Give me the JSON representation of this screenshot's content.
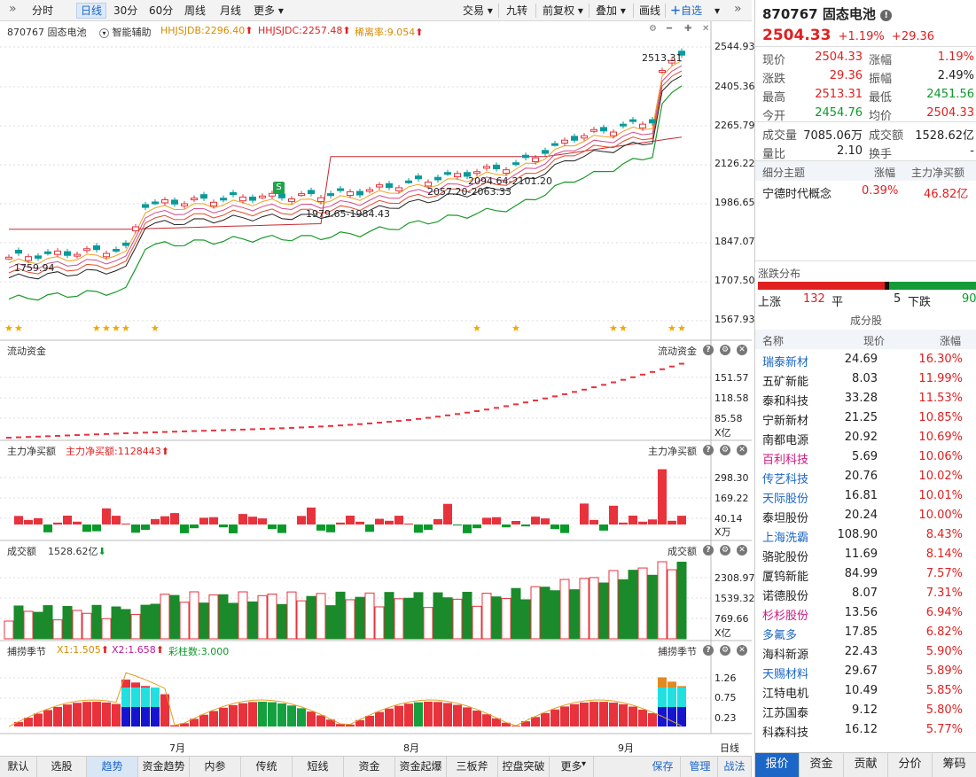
{
  "toolbar": {
    "left_items": [
      "分时",
      "日线",
      "30分",
      "60分",
      "周线",
      "月线",
      "更多"
    ],
    "active": "日线",
    "right_items": [
      "交易",
      "九转",
      "前复权",
      "叠加",
      "画线"
    ],
    "add_watch": "自选"
  },
  "main_chart": {
    "code_name": "870767 固态电池",
    "smart_assist": "智能辅助",
    "ind1": "HHJSJDB:2296.40",
    "ind2": "HHJSJDC:2257.48",
    "ind3": "稀离率:9.054",
    "y_ticks": [
      "2544.93",
      "2405.36",
      "2265.79",
      "2126.22",
      "1986.65",
      "1847.07",
      "1707.50",
      "1567.93"
    ],
    "annotations": {
      "high": "2513.31",
      "low": "1759.94",
      "a1": "2094.64-2101.20",
      "a2": "2057.20-2063.33",
      "a3": "1979.65-1984.43",
      "s_marker": "S"
    }
  },
  "flow_panel": {
    "title": "流动资金",
    "right_title": "流动资金",
    "y_ticks": [
      "151.57",
      "118.58",
      "85.58"
    ],
    "unit": "X亿"
  },
  "netbuy_panel": {
    "title": "主力净买额",
    "value": "主力净买额:1128443",
    "right_title": "主力净买额",
    "y_ticks": [
      "298.30",
      "169.22",
      "40.14"
    ],
    "unit": "X万"
  },
  "volume_panel": {
    "title": "成交额",
    "value": "1528.62亿",
    "right_title": "成交额",
    "y_ticks": [
      "2308.97",
      "1539.32",
      "769.66"
    ],
    "unit": "X亿"
  },
  "season_panel": {
    "title": "捕捞季节",
    "x1": "X1:1.505",
    "x2": "X2:1.658",
    "bars": "彩柱数:3.000",
    "right_title": "捕捞季节",
    "y_ticks": [
      "1.26",
      "0.75",
      "0.23"
    ]
  },
  "x_axis": {
    "labels": [
      "7月",
      "8月",
      "9月"
    ],
    "period": "日线"
  },
  "bottom_tabs": [
    "默认",
    "选股",
    "趋势",
    "资金趋势",
    "内参",
    "传统",
    "短线",
    "资金",
    "资金起爆",
    "三板斧",
    "控盘突破",
    "更多"
  ],
  "bottom_active": "趋势",
  "bottom_right": [
    "保存",
    "管理",
    "战法"
  ],
  "stock": {
    "title": "870767 固态电池",
    "price": "2504.33",
    "change_pct": "+1.19%",
    "change": "+29.36"
  },
  "quote": [
    {
      "l1": "现价",
      "v1": "2504.33",
      "c1": "red",
      "l2": "涨幅",
      "v2": "1.19%",
      "c2": "red"
    },
    {
      "l1": "涨跌",
      "v1": "29.36",
      "c1": "red",
      "l2": "振幅",
      "v2": "2.49%",
      "c2": ""
    },
    {
      "l1": "最高",
      "v1": "2513.31",
      "c1": "red",
      "l2": "最低",
      "v2": "2451.56",
      "c2": "green"
    },
    {
      "l1": "今开",
      "v1": "2454.76",
      "c1": "green",
      "l2": "均价",
      "v2": "2504.33",
      "c2": "red"
    }
  ],
  "quote2": [
    {
      "l1": "成交量",
      "v1": "7085.06万",
      "l2": "成交额",
      "v2": "1528.62亿"
    },
    {
      "l1": "量比",
      "v1": "2.10",
      "l2": "换手",
      "v2": "-"
    }
  ],
  "theme_table": {
    "headers": [
      "细分主题",
      "涨幅",
      "主力净买额"
    ],
    "rows": [
      {
        "name": "宁德时代概念",
        "pct": "0.39%",
        "net": "46.82亿"
      }
    ]
  },
  "distribution": {
    "title": "涨跌分布",
    "up_label": "上涨",
    "up": "132",
    "flat_label": "平",
    "flat": "5",
    "down_label": "下跌",
    "down": "90",
    "up_frac": 0.58,
    "flat_frac": 0.02,
    "down_frac": 0.4
  },
  "constituents": {
    "title": "成分股",
    "headers": [
      "名称",
      "现价",
      "涨幅"
    ],
    "rows": [
      {
        "name": "瑞泰新材",
        "price": "24.69",
        "pct": "16.30%",
        "color": "#1c66c7"
      },
      {
        "name": "五矿新能",
        "price": "8.03",
        "pct": "11.99%",
        "color": "#222"
      },
      {
        "name": "泰和科技",
        "price": "33.28",
        "pct": "11.53%",
        "color": "#222"
      },
      {
        "name": "宁新新材",
        "price": "21.25",
        "pct": "10.85%",
        "color": "#222"
      },
      {
        "name": "南都电源",
        "price": "20.92",
        "pct": "10.69%",
        "color": "#222"
      },
      {
        "name": "百利科技",
        "price": "5.69",
        "pct": "10.06%",
        "color": "#d0177e"
      },
      {
        "name": "传艺科技",
        "price": "20.76",
        "pct": "10.02%",
        "color": "#1c66c7"
      },
      {
        "name": "天际股份",
        "price": "16.81",
        "pct": "10.01%",
        "color": "#1c66c7"
      },
      {
        "name": "泰坦股份",
        "price": "20.24",
        "pct": "10.00%",
        "color": "#222"
      },
      {
        "name": "上海洗霸",
        "price": "108.90",
        "pct": "8.43%",
        "color": "#1c66c7"
      },
      {
        "name": "骆驼股份",
        "price": "11.69",
        "pct": "8.14%",
        "color": "#222"
      },
      {
        "name": "厦钨新能",
        "price": "84.99",
        "pct": "7.57%",
        "color": "#222"
      },
      {
        "name": "诺德股份",
        "price": "8.07",
        "pct": "7.31%",
        "color": "#222"
      },
      {
        "name": "杉杉股份",
        "price": "13.56",
        "pct": "6.94%",
        "color": "#d0177e"
      },
      {
        "name": "多氟多",
        "price": "17.85",
        "pct": "6.82%",
        "color": "#1c66c7"
      },
      {
        "name": "海科新源",
        "price": "22.43",
        "pct": "5.90%",
        "color": "#222"
      },
      {
        "name": "天赐材料",
        "price": "29.67",
        "pct": "5.89%",
        "color": "#1c66c7"
      },
      {
        "name": "江特电机",
        "price": "10.49",
        "pct": "5.85%",
        "color": "#222"
      },
      {
        "name": "江苏国泰",
        "price": "9.12",
        "pct": "5.80%",
        "color": "#222"
      },
      {
        "name": "科森科技",
        "price": "16.12",
        "pct": "5.77%",
        "color": "#222"
      }
    ]
  },
  "right_tabs": [
    "报价",
    "资金",
    "贡献",
    "分价",
    "筹码"
  ],
  "right_active": "报价",
  "colors": {
    "up": "#e8323c",
    "down": "#0a8a2a",
    "accent": "#1c66c7"
  }
}
